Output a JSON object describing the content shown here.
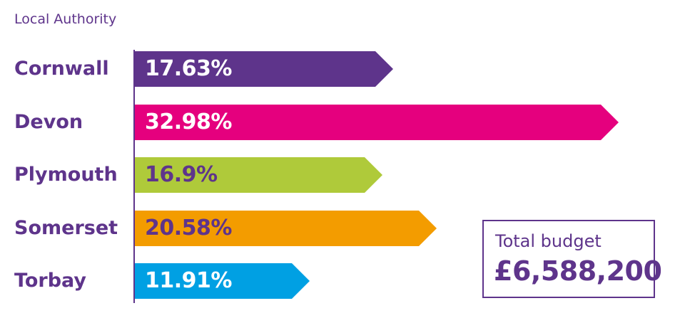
{
  "chart_data": {
    "type": "bar",
    "orientation": "horizontal",
    "ylabel": "Local Authority",
    "categories": [
      "Cornwall",
      "Devon",
      "Plymouth",
      "Somerset",
      "Torbay"
    ],
    "values": [
      17.63,
      32.98,
      16.9,
      20.58,
      11.91
    ],
    "value_labels": [
      "17.63%",
      "32.98%",
      "16.9%",
      "20.58%",
      "11.91%"
    ],
    "colors": [
      "#5e348b",
      "#e5007e",
      "#afca3a",
      "#f39c00",
      "#00a0e3"
    ],
    "label_colors": [
      "#ffffff",
      "#ffffff",
      "#5e348b",
      "#5e348b",
      "#ffffff"
    ],
    "xlim": [
      0,
      35
    ],
    "grid": false
  },
  "total_box": {
    "label": "Total budget",
    "value": "£6,588,200"
  }
}
